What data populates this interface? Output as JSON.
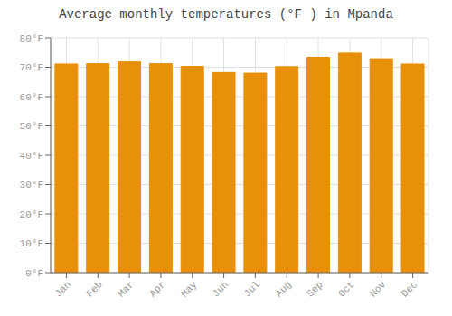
{
  "chart_data": {
    "type": "bar",
    "title": "Average monthly temperatures (°F ) in Mpanda",
    "categories": [
      "Jan",
      "Feb",
      "Mar",
      "Apr",
      "May",
      "Jun",
      "Jul",
      "Aug",
      "Sep",
      "Oct",
      "Nov",
      "Dec"
    ],
    "values": [
      71.1,
      71.2,
      71.8,
      71.2,
      70.3,
      68.2,
      68.0,
      70.2,
      73.4,
      74.8,
      72.9,
      71.1
    ],
    "color": "#E8900A",
    "ylim": [
      0,
      80
    ],
    "yticks": [
      {
        "value": 0,
        "label": "0°F"
      },
      {
        "value": 10,
        "label": "10°F"
      },
      {
        "value": 20,
        "label": "20°F"
      },
      {
        "value": 30,
        "label": "30°F"
      },
      {
        "value": 40,
        "label": "40°F"
      },
      {
        "value": 50,
        "label": "50°F"
      },
      {
        "value": 60,
        "label": "60°F"
      },
      {
        "value": 70,
        "label": "70°F"
      },
      {
        "value": 80,
        "label": "80°F"
      }
    ],
    "grid": true
  }
}
